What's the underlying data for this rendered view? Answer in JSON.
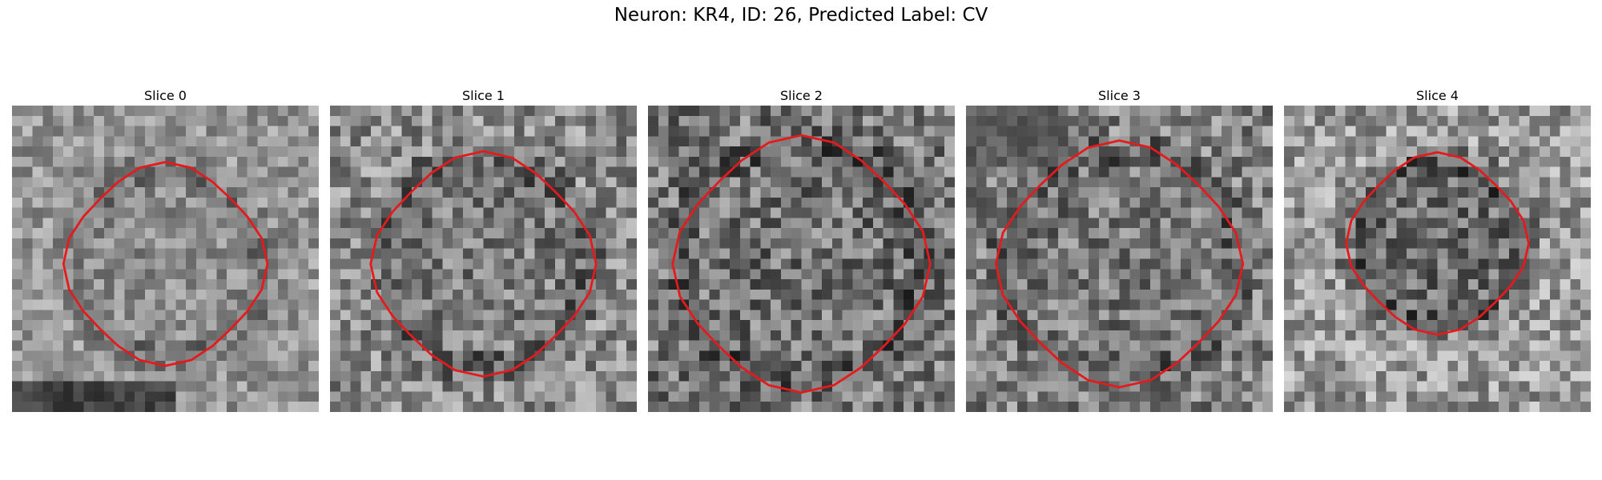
{
  "figure": {
    "title": "Neuron: KR4, ID: 26, Predicted Label: CV"
  },
  "colors": {
    "contour": "#e41a1c",
    "background": "#ffffff"
  },
  "panels": [
    {
      "title": "Slice 0"
    },
    {
      "title": "Slice 1"
    },
    {
      "title": "Slice 2"
    },
    {
      "title": "Slice 3"
    },
    {
      "title": "Slice 4"
    }
  ]
}
